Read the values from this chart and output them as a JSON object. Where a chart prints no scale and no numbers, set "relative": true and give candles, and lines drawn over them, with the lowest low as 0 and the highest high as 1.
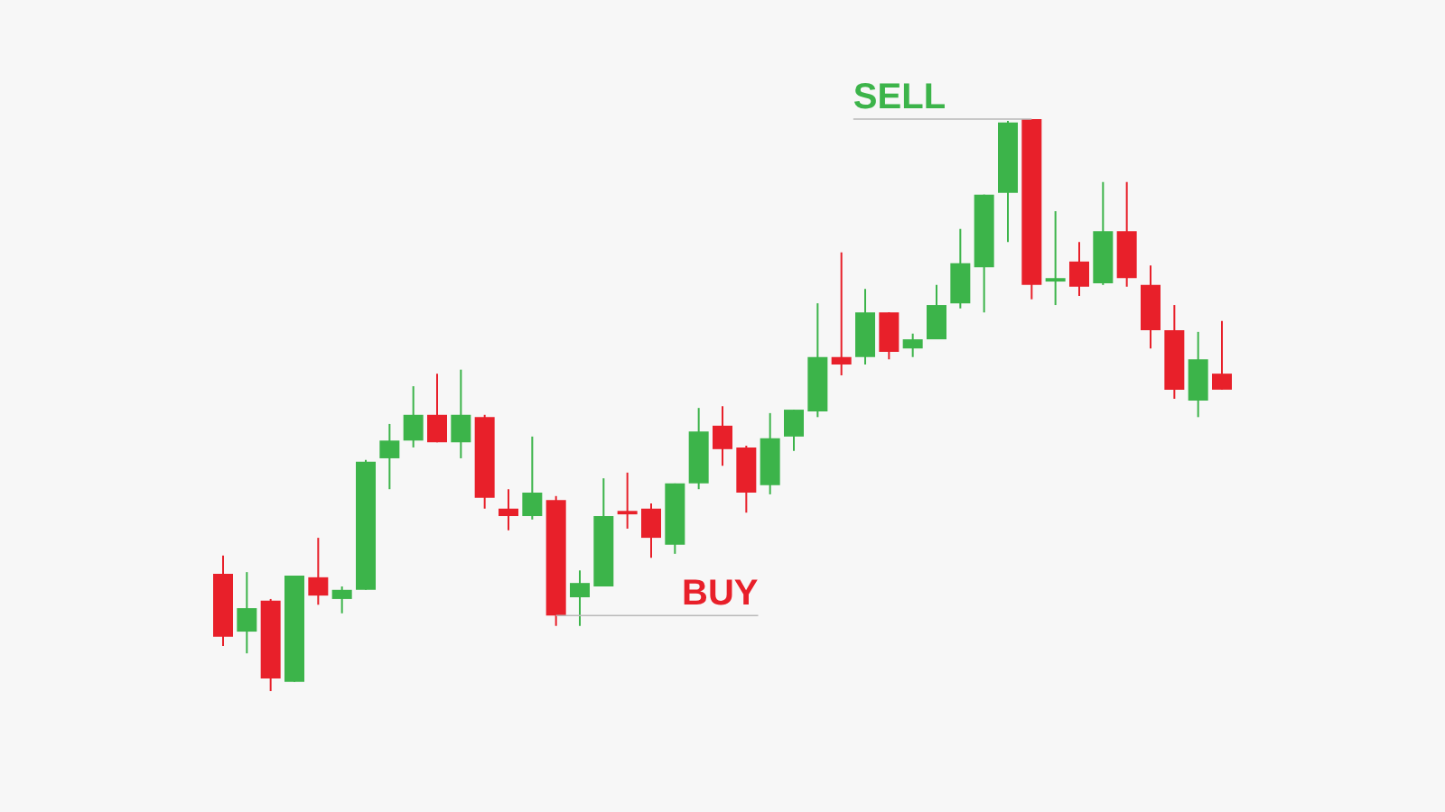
{
  "chart_data": {
    "type": "candlestick",
    "relative": true,
    "categories": [
      null,
      null,
      null,
      null,
      null,
      null,
      null,
      null,
      null,
      null,
      null,
      null,
      null,
      null,
      null,
      null,
      null,
      null,
      null,
      null,
      null,
      null,
      null,
      null,
      null,
      null,
      null,
      null,
      null,
      null,
      null,
      null,
      null,
      null,
      null,
      null,
      null,
      null,
      null,
      null,
      null,
      null,
      null
    ],
    "ohlc": [
      [
        0.205,
        0.237,
        0.079,
        0.095
      ],
      [
        0.104,
        0.208,
        0.066,
        0.145
      ],
      [
        0.158,
        0.161,
        0,
        0.022
      ],
      [
        0.016,
        0.202,
        0.016,
        0.202
      ],
      [
        0.199,
        0.268,
        0.151,
        0.167
      ],
      [
        0.161,
        0.183,
        0.136,
        0.177
      ],
      [
        0.177,
        0.404,
        0.177,
        0.401
      ],
      [
        0.407,
        0.467,
        0.353,
        0.438
      ],
      [
        0.438,
        0.533,
        0.426,
        0.483
      ],
      [
        0.483,
        0.555,
        0.435,
        0.435
      ],
      [
        0.435,
        0.562,
        0.407,
        0.483
      ],
      [
        0.479,
        0.483,
        0.319,
        0.338
      ],
      [
        0.319,
        0.353,
        0.281,
        0.306
      ],
      [
        0.306,
        0.445,
        0.3,
        0.347
      ],
      [
        0.334,
        0.341,
        0.114,
        0.132
      ],
      [
        0.164,
        0.211,
        0.114,
        0.189
      ],
      [
        0.183,
        0.372,
        0.183,
        0.306
      ],
      [
        0.315,
        0.382,
        0.284,
        0.309
      ],
      [
        0.319,
        0.328,
        0.233,
        0.268
      ],
      [
        0.256,
        0.363,
        0.24,
        0.363
      ],
      [
        0.363,
        0.495,
        0.353,
        0.454
      ],
      [
        0.464,
        0.498,
        0.394,
        0.423
      ],
      [
        0.426,
        0.429,
        0.312,
        0.347
      ],
      [
        0.36,
        0.486,
        0.344,
        0.442
      ],
      [
        0.445,
        0.492,
        0.42,
        0.492
      ],
      [
        0.489,
        0.678,
        0.479,
        0.584
      ],
      [
        0.584,
        0.767,
        0.552,
        0.571
      ],
      [
        0.584,
        0.703,
        0.571,
        0.662
      ],
      [
        0.662,
        0.662,
        0.58,
        0.593
      ],
      [
        0.599,
        0.625,
        0.584,
        0.615
      ],
      [
        0.615,
        0.71,
        0.615,
        0.675
      ],
      [
        0.678,
        0.808,
        0.669,
        0.748
      ],
      [
        0.741,
        0.868,
        0.662,
        0.868
      ],
      [
        0.871,
        0.997,
        0.785,
        0.994
      ],
      [
        1,
        1,
        0.685,
        0.71
      ],
      [
        0.716,
        0.839,
        0.675,
        0.722
      ],
      [
        0.751,
        0.785,
        0.691,
        0.707
      ],
      [
        0.713,
        0.89,
        0.71,
        0.804
      ],
      [
        0.804,
        0.89,
        0.707,
        0.722
      ],
      [
        0.71,
        0.744,
        0.599,
        0.631
      ],
      [
        0.631,
        0.675,
        0.511,
        0.527
      ],
      [
        0.508,
        0.628,
        0.479,
        0.58
      ],
      [
        0.555,
        0.647,
        0.527,
        0.527
      ]
    ],
    "colors": [
      "#e8202a",
      "#3cb44a",
      "#e8202a",
      "#3cb44a",
      "#e8202a",
      "#3cb44a",
      "#3cb44a",
      "#3cb44a",
      "#3cb44a",
      "#e8202a",
      "#3cb44a",
      "#e8202a",
      "#e8202a",
      "#3cb44a",
      "#e8202a",
      "#3cb44a",
      "#3cb44a",
      "#e8202a",
      "#e8202a",
      "#3cb44a",
      "#3cb44a",
      "#e8202a",
      "#e8202a",
      "#3cb44a",
      "#3cb44a",
      "#3cb44a",
      "#e8202a",
      "#3cb44a",
      "#e8202a",
      "#3cb44a",
      "#3cb44a",
      "#3cb44a",
      "#3cb44a",
      "#3cb44a",
      "#e8202a",
      "#3cb44a",
      "#e8202a",
      "#3cb44a",
      "#e8202a",
      "#e8202a",
      "#e8202a",
      "#3cb44a",
      "#e8202a"
    ],
    "annotations": [
      "SELL",
      "BUY"
    ]
  }
}
